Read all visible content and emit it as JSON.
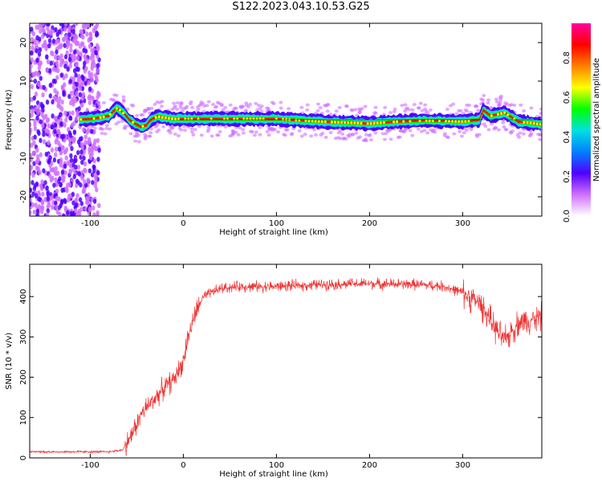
{
  "title": "S122.2023.043.10.53.G25",
  "chart_data": [
    {
      "type": "heatmap",
      "xlabel": "Height of straight line (km)",
      "ylabel": "Frequency (Hz)",
      "xlim": [
        -165,
        385
      ],
      "ylim": [
        -25,
        25
      ],
      "x_ticks": [
        -100,
        0,
        100,
        200,
        300
      ],
      "y_ticks": [
        -20,
        -10,
        0,
        10,
        20
      ],
      "ridge": {
        "description_points": [
          [
            -115,
            0
          ],
          [
            -100,
            0.2
          ],
          [
            -90,
            0.5
          ],
          [
            -80,
            1.0
          ],
          [
            -75,
            2.2
          ],
          [
            -72,
            3.0
          ],
          [
            -68,
            2.5
          ],
          [
            -62,
            1.2
          ],
          [
            -58,
            0.0
          ],
          [
            -52,
            -1.0
          ],
          [
            -46,
            -1.8
          ],
          [
            -40,
            -1.5
          ],
          [
            -35,
            0.0
          ],
          [
            -28,
            0.8
          ],
          [
            -20,
            0.5
          ],
          [
            -10,
            0.2
          ],
          [
            0,
            0.2
          ],
          [
            100,
            0.2
          ],
          [
            150,
            -0.5
          ],
          [
            200,
            -1.0
          ],
          [
            230,
            -0.5
          ],
          [
            260,
            -0.2
          ],
          [
            300,
            -0.5
          ],
          [
            318,
            0.0
          ],
          [
            322,
            2.5
          ],
          [
            330,
            1.0
          ],
          [
            345,
            1.8
          ],
          [
            360,
            -0.5
          ],
          [
            385,
            -1.2
          ]
        ]
      },
      "colorbar": {
        "label": "Normalized spectral amplitude",
        "ticks": [
          0.0,
          0.2,
          0.4,
          0.6,
          0.8
        ],
        "colors": [
          "#ffffff",
          "#d070ff",
          "#5000ff",
          "#0080ff",
          "#00e0e0",
          "#00ff00",
          "#ffff00",
          "#ff8000",
          "#ff0000",
          "#ff00a0"
        ]
      }
    },
    {
      "type": "line",
      "xlabel": "Height of straight line (km)",
      "ylabel": "SNR (10 * v/v)",
      "xlim": [
        -165,
        385
      ],
      "ylim": [
        0,
        480
      ],
      "x_ticks": [
        -100,
        0,
        100,
        200,
        300
      ],
      "y_ticks": [
        0,
        100,
        200,
        300,
        400
      ],
      "color": "#f03030",
      "trend": {
        "x": [
          -165,
          -80,
          -65,
          -55,
          -45,
          -30,
          -20,
          -10,
          0,
          5,
          12,
          20,
          30,
          40,
          60,
          100,
          150,
          200,
          250,
          280,
          300,
          320,
          335,
          345,
          360,
          385
        ],
        "y": [
          15,
          15,
          20,
          60,
          110,
          150,
          175,
          195,
          240,
          300,
          350,
          395,
          410,
          420,
          425,
          425,
          430,
          432,
          430,
          425,
          410,
          380,
          320,
          290,
          335,
          350
        ]
      }
    }
  ]
}
